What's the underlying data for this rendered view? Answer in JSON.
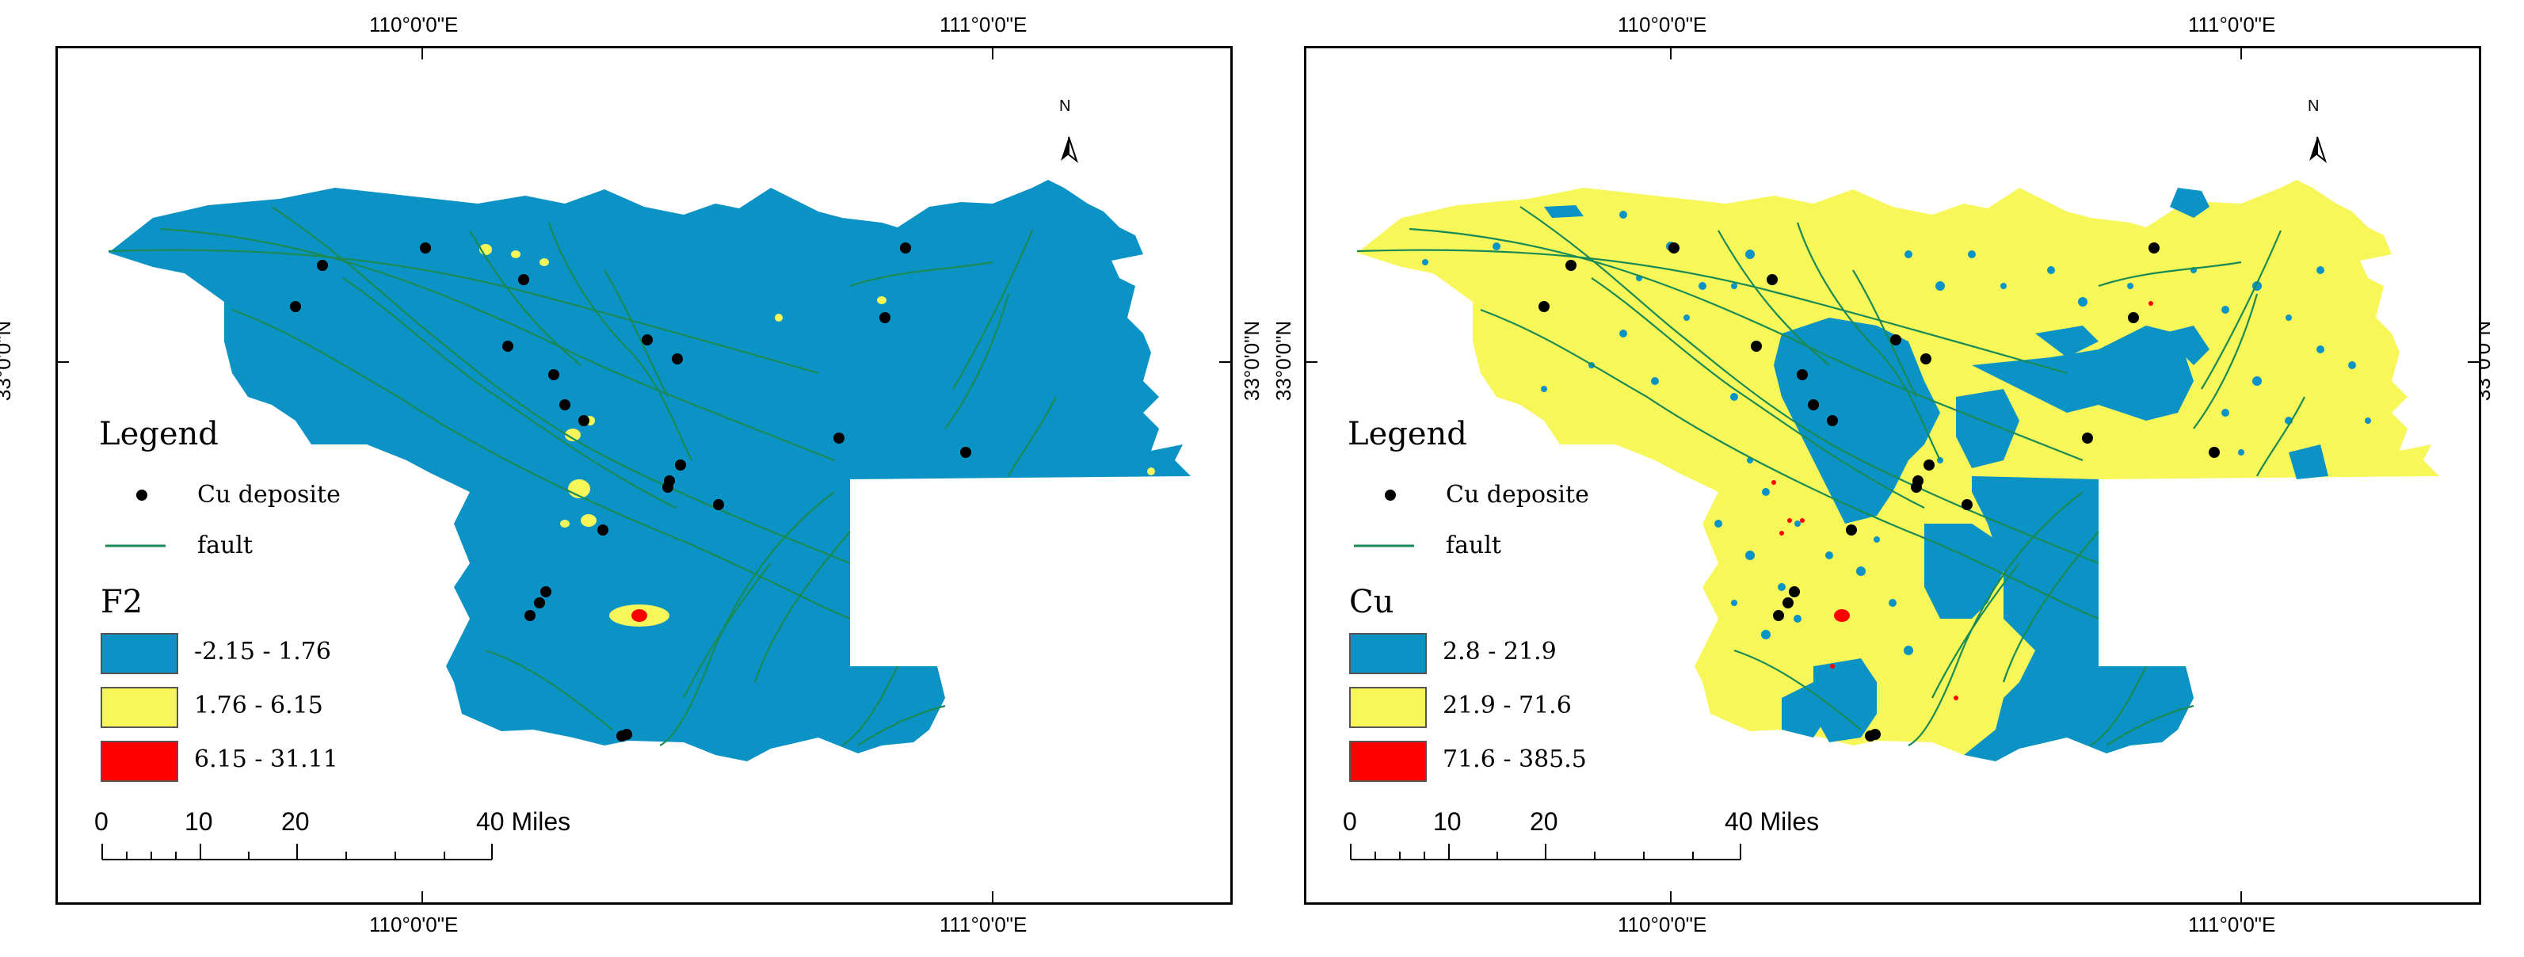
{
  "graticule": {
    "lon_left": "110°0'0\"E",
    "lon_right": "111°0'0\"E",
    "lat": "33°0'0\"N"
  },
  "colors": {
    "low": "#0b93c6",
    "mid": "#f7f75a",
    "high": "#ff0000",
    "fault": "#1a8a55",
    "deposit": "#000000"
  },
  "panels": [
    {
      "legend_title": "Legend",
      "deposit_label": "Cu deposite",
      "fault_label": "fault",
      "variable": "F2",
      "classes": [
        {
          "label": "-2.15 - 1.76",
          "color": "#0b93c6"
        },
        {
          "label": "1.76 - 6.15",
          "color": "#f7f75a"
        },
        {
          "label": "6.15 - 31.11",
          "color": "#ff0000"
        }
      ],
      "north": "N",
      "scale": {
        "ticks": [
          "0",
          "10",
          "20",
          "40 Miles"
        ]
      }
    },
    {
      "legend_title": "Legend",
      "deposit_label": "Cu deposite",
      "fault_label": "fault",
      "variable": "Cu",
      "classes": [
        {
          "label": "2.8 - 21.9",
          "color": "#0b93c6"
        },
        {
          "label": "21.9 - 71.6",
          "color": "#f7f75a"
        },
        {
          "label": "71.6 - 385.5",
          "color": "#ff0000"
        }
      ],
      "north": "N",
      "scale": {
        "ticks": [
          "0",
          "10",
          "20",
          "40 Miles"
        ]
      }
    }
  ]
}
